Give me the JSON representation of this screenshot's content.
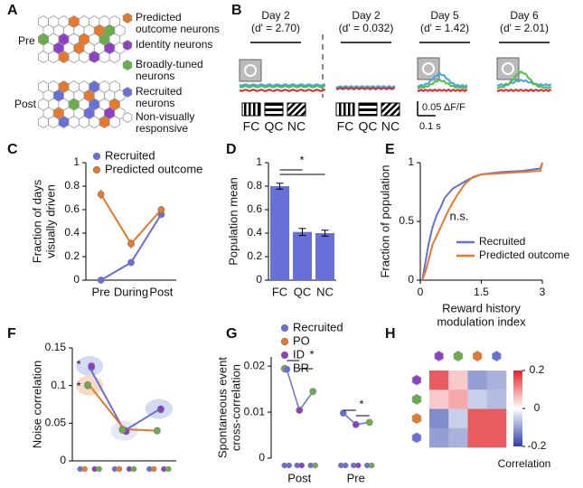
{
  "panel_labels": [
    "A",
    "B",
    "C",
    "D",
    "E",
    "F",
    "G",
    "H"
  ],
  "panel_a": {
    "rows": [
      "Pre",
      "Post"
    ],
    "legend": [
      {
        "lines": [
          "Predicted",
          "outcome neurons"
        ],
        "color": "#e8782a"
      },
      {
        "lines": [
          "Identity neurons"
        ],
        "color": "#8d3fc6"
      },
      {
        "lines": [
          "Broadly-tuned",
          "neurons"
        ],
        "color": "#6aae4a"
      },
      {
        "lines": [
          "Recruited",
          "neurons"
        ],
        "color": "#6670d8"
      },
      {
        "lines": [
          "Non-visually",
          "responsive"
        ],
        "color": "#ffffff"
      }
    ]
  },
  "panel_b": {
    "columns": [
      {
        "day": "Day 2",
        "dprime": "(d' = 2.70)"
      },
      {
        "day": "Day 2",
        "dprime": "(d' = 0.032)"
      },
      {
        "day": "Day 5",
        "dprime": "(d' = 1.42)"
      },
      {
        "day": "Day 6",
        "dprime": "(d' = 2.01)"
      }
    ],
    "stimuli": [
      {
        "label": "FC",
        "color": "#4fbf45"
      },
      {
        "label": "QC",
        "color": "#e0262b"
      },
      {
        "label": "NC",
        "color": "#3fa6e0"
      }
    ],
    "scale_y": "0.05 ΔF/F",
    "scale_x": "0.1 s"
  },
  "chart_data": [
    {
      "type": "line",
      "categories": [
        "Pre",
        "During",
        "Post"
      ],
      "series": [
        {
          "name": "Recruited",
          "color": "#6670d8",
          "values": [
            0,
            0.15,
            0.56
          ],
          "errors": [
            0.01,
            0.01,
            0.02
          ]
        },
        {
          "name": "Predicted outcome",
          "color": "#e8782a",
          "values": [
            0.73,
            0.31,
            0.6
          ],
          "errors": [
            0.04,
            0.04,
            0.03
          ]
        }
      ],
      "ylabel": [
        "Fraction of days",
        "visually driven"
      ],
      "ylim": [
        0,
        1
      ],
      "yticks": [
        0,
        0.2,
        0.4,
        0.6,
        0.8,
        1
      ],
      "markers": true,
      "legend": "upper left"
    },
    {
      "type": "bar",
      "categories": [
        "FC",
        "QC",
        "NC"
      ],
      "values": [
        0.8,
        0.41,
        0.4
      ],
      "errors": [
        0.025,
        0.03,
        0.025
      ],
      "color": "#6670d8",
      "ylabel": [
        "Population mean"
      ],
      "ylim": [
        0,
        1
      ],
      "yticks": [
        0,
        0.2,
        0.4,
        0.6,
        0.8,
        1
      ],
      "annotations": [
        "*"
      ]
    },
    {
      "type": "line",
      "series": [
        {
          "name": "Recruited",
          "color": "#6670d8",
          "x": [
            0.05,
            0.1,
            0.2,
            0.3,
            0.4,
            0.5,
            0.6,
            0.8,
            1,
            1.2,
            1.5,
            2,
            2.5,
            2.95,
            3
          ],
          "values": [
            0,
            0.1,
            0.3,
            0.45,
            0.55,
            0.62,
            0.7,
            0.78,
            0.82,
            0.86,
            0.9,
            0.92,
            0.93,
            0.95,
            1
          ]
        },
        {
          "name": "Predicted outcome",
          "color": "#e8782a",
          "x": [
            0.05,
            0.15,
            0.3,
            0.5,
            0.7,
            0.9,
            1.1,
            1.3,
            1.5,
            2,
            2.5,
            2.95,
            3
          ],
          "values": [
            0,
            0.1,
            0.3,
            0.45,
            0.6,
            0.72,
            0.82,
            0.88,
            0.9,
            0.91,
            0.92,
            0.93,
            1
          ]
        }
      ],
      "xlabel": [
        "Reward history",
        "modulation index"
      ],
      "ylabel": [
        "Fraction of population"
      ],
      "xlim": [
        0,
        3
      ],
      "xticks": [
        0,
        1.5,
        3
      ],
      "ylim": [
        0,
        1
      ],
      "yticks": [
        0,
        0.5,
        1
      ],
      "annotations": [
        "n.s."
      ],
      "legend": "lower right"
    },
    {
      "type": "line",
      "categories": [
        null,
        null,
        null
      ],
      "series": [
        {
          "name": "Recruited",
          "color": "#6670d8",
          "values": [
            0.124,
            0.04,
            0.068
          ],
          "line": true
        },
        {
          "name": "PO",
          "color": "#e8782a",
          "values": [
            0.1,
            0.042,
            0.04
          ],
          "line": true
        },
        {
          "name": "ID",
          "color": "#8d3fc6",
          "values": [
            0.126,
            0.039,
            0.069
          ],
          "line": false
        },
        {
          "name": "BR",
          "color": "#6aae4a",
          "values": [
            0.101,
            0.041,
            0.04
          ],
          "line": false
        }
      ],
      "ylabel": [
        "Noise correlation"
      ],
      "ylim": [
        0,
        0.15
      ],
      "yticks": [
        0,
        0.05,
        0.1,
        0.15
      ],
      "markers": true,
      "annotations": [
        "*",
        "*"
      ],
      "legend": "outside right"
    },
    {
      "type": "dotplot",
      "categories": [
        "Post",
        "Pre"
      ],
      "values": [
        [
          0.0193,
          0.0104,
          0.0145
        ],
        [
          0.0098,
          0.0073,
          0.0078
        ]
      ],
      "point_colors": [
        "#6670d8",
        "#8d3fc6",
        "#6aae4a"
      ],
      "ylabel": [
        "Spontaneous event",
        "cross-correlation"
      ],
      "ylim": [
        0,
        0.022
      ],
      "yticks": [
        0,
        0.01,
        0.02
      ],
      "annotations": [
        "*",
        "*"
      ]
    },
    {
      "type": "heatmap",
      "values": [
        [
          0.15,
          0.05,
          -0.1,
          -0.08
        ],
        [
          0.05,
          0.08,
          -0.05,
          -0.07
        ],
        [
          -0.12,
          -0.05,
          0.15,
          0.15
        ],
        [
          -0.1,
          -0.08,
          0.15,
          0.15
        ]
      ],
      "row_colors": [
        "#8d3fc6",
        "#6aae4a",
        "#e8782a",
        "#6670d8"
      ],
      "vlim": [
        -0.2,
        0.2
      ],
      "cticks": [
        0.2,
        0,
        -0.2
      ],
      "colormap": [
        "#2b3fa8",
        "#ffffff",
        "#e0262b"
      ],
      "clabel": "Correlation"
    }
  ]
}
